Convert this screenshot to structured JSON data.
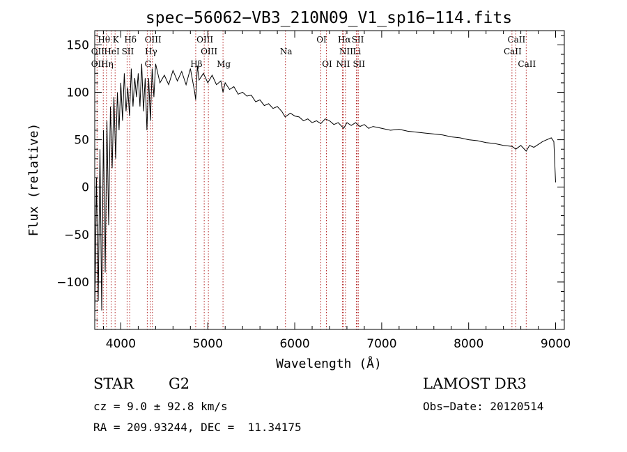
{
  "title": "spec−56062−VB3_210N09_V1_sp16−114.fits",
  "chart_data": {
    "type": "line",
    "xlabel": "Wavelength (Å)",
    "ylabel": "Flux (relative)",
    "xlim": [
      3700,
      9100
    ],
    "ylim": [
      -150,
      165
    ],
    "xticks": [
      4000,
      5000,
      6000,
      7000,
      8000,
      9000
    ],
    "xtick_labels": [
      "4000",
      "5000",
      "6000",
      "7000",
      "8000",
      "9000"
    ],
    "yticks": [
      -100,
      -50,
      0,
      50,
      100,
      150
    ],
    "ytick_labels": [
      "−100",
      "−50",
      "0",
      "50",
      "100",
      "150"
    ],
    "series": [
      {
        "name": "spectrum",
        "x": [
          3700,
          3720,
          3740,
          3760,
          3780,
          3800,
          3820,
          3840,
          3860,
          3880,
          3900,
          3920,
          3940,
          3960,
          3980,
          4000,
          4020,
          4040,
          4060,
          4080,
          4100,
          4120,
          4140,
          4160,
          4180,
          4200,
          4220,
          4240,
          4260,
          4280,
          4300,
          4320,
          4340,
          4360,
          4380,
          4400,
          4450,
          4500,
          4550,
          4600,
          4650,
          4700,
          4750,
          4800,
          4850,
          4861,
          4880,
          4900,
          4950,
          5000,
          5050,
          5100,
          5150,
          5175,
          5200,
          5250,
          5300,
          5350,
          5400,
          5450,
          5500,
          5550,
          5600,
          5650,
          5700,
          5750,
          5800,
          5850,
          5890,
          5950,
          6000,
          6050,
          6100,
          6150,
          6200,
          6250,
          6300,
          6350,
          6400,
          6450,
          6500,
          6563,
          6600,
          6650,
          6700,
          6750,
          6800,
          6850,
          6900,
          6950,
          7000,
          7100,
          7200,
          7300,
          7400,
          7500,
          7600,
          7700,
          7800,
          7900,
          8000,
          8100,
          8200,
          8300,
          8400,
          8500,
          8542,
          8600,
          8662,
          8700,
          8750,
          8800,
          8850,
          8900,
          8950,
          8980,
          9000
        ],
        "y": [
          -140,
          10,
          -120,
          40,
          -130,
          60,
          -90,
          70,
          -40,
          85,
          20,
          95,
          30,
          100,
          60,
          110,
          70,
          120,
          80,
          105,
          75,
          125,
          85,
          115,
          95,
          120,
          85,
          130,
          80,
          115,
          60,
          115,
          70,
          125,
          95,
          130,
          110,
          118,
          108,
          123,
          112,
          122,
          108,
          125,
          100,
          92,
          128,
          113,
          120,
          110,
          118,
          108,
          112,
          100,
          110,
          103,
          106,
          98,
          100,
          96,
          97,
          90,
          92,
          86,
          88,
          83,
          85,
          80,
          74,
          78,
          75,
          74,
          70,
          72,
          68,
          70,
          67,
          72,
          70,
          66,
          68,
          62,
          68,
          65,
          68,
          64,
          66,
          62,
          64,
          63,
          62,
          60,
          61,
          59,
          58,
          57,
          56,
          55,
          53,
          52,
          50,
          49,
          47,
          46,
          44,
          43,
          40,
          44,
          38,
          44,
          42,
          45,
          48,
          50,
          52,
          48,
          5
        ]
      }
    ],
    "lines": [
      {
        "name": "Hθ",
        "wave": 3798,
        "row": 0
      },
      {
        "name": "K",
        "wave": 3934,
        "row": 0
      },
      {
        "name": "Hδ",
        "wave": 4102,
        "row": 0
      },
      {
        "name": "OIII",
        "wave": 4363,
        "row": 0
      },
      {
        "name": "OIII",
        "wave": 4959,
        "row": 0
      },
      {
        "name": "OI",
        "wave": 6300,
        "row": 0
      },
      {
        "name": "Hα",
        "wave": 6563,
        "row": 0
      },
      {
        "name": "SII",
        "wave": 6717,
        "row": 0
      },
      {
        "name": "CaII",
        "wave": 8542,
        "row": 0
      },
      {
        "name": "OII",
        "wave": 3727,
        "row": 1
      },
      {
        "name": "HeI",
        "wave": 3889,
        "row": 1
      },
      {
        "name": "SII",
        "wave": 4072,
        "row": 1
      },
      {
        "name": "Hγ",
        "wave": 4340,
        "row": 1
      },
      {
        "name": "OIII",
        "wave": 5007,
        "row": 1
      },
      {
        "name": "Na",
        "wave": 5893,
        "row": 1
      },
      {
        "name": "NII",
        "wave": 6584,
        "row": 1
      },
      {
        "name": "Li",
        "wave": 6708,
        "row": 1
      },
      {
        "name": "CaII",
        "wave": 8498,
        "row": 1
      },
      {
        "name": "OII",
        "wave": 3727,
        "row": 2
      },
      {
        "name": "Hη",
        "wave": 3835,
        "row": 2
      },
      {
        "name": "G",
        "wave": 4304,
        "row": 2
      },
      {
        "name": "Hβ",
        "wave": 4861,
        "row": 2
      },
      {
        "name": "Mg",
        "wave": 5175,
        "row": 2
      },
      {
        "name": "OI",
        "wave": 6364,
        "row": 2
      },
      {
        "name": "NII",
        "wave": 6548,
        "row": 2
      },
      {
        "name": "SII",
        "wave": 6731,
        "row": 2
      },
      {
        "name": "CaII",
        "wave": 8662,
        "row": 2
      }
    ]
  },
  "info": {
    "object_class": "STAR",
    "subclass": "G2",
    "redshift": "cz = 9.0 ± 92.8 km/s",
    "coords": "RA = 209.93244, DEC =  11.34175",
    "survey": "LAMOST DR3",
    "obs_date": "Obs−Date: 20120514"
  },
  "colors": {
    "spectrum": "#000000",
    "line_marker": "#b22222",
    "frame": "#000000"
  }
}
